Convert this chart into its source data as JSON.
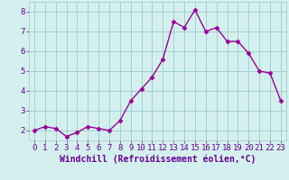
{
  "xlabel": "Windchill (Refroidissement éolien,°C)",
  "x": [
    0,
    1,
    2,
    3,
    4,
    5,
    6,
    7,
    8,
    9,
    10,
    11,
    12,
    13,
    14,
    15,
    16,
    17,
    18,
    19,
    20,
    21,
    22,
    23
  ],
  "y": [
    2.0,
    2.2,
    2.1,
    1.7,
    1.9,
    2.2,
    2.1,
    2.0,
    2.5,
    3.5,
    4.1,
    4.7,
    5.6,
    7.5,
    7.2,
    8.1,
    7.0,
    7.2,
    6.5,
    6.5,
    5.9,
    5.0,
    4.9,
    3.5
  ],
  "line_color": "#990099",
  "marker_color": "#990099",
  "bg_color": "#d4f0ee",
  "grid_color": "#99cccc",
  "axis_label_color": "#660099",
  "tick_color": "#660099",
  "ylim": [
    1.5,
    8.5
  ],
  "xlim": [
    -0.5,
    23.5
  ],
  "yticks": [
    2,
    3,
    4,
    5,
    6,
    7,
    8
  ],
  "xticks": [
    0,
    1,
    2,
    3,
    4,
    5,
    6,
    7,
    8,
    9,
    10,
    11,
    12,
    13,
    14,
    15,
    16,
    17,
    18,
    19,
    20,
    21,
    22,
    23
  ],
  "xlabel_fontsize": 7,
  "tick_fontsize": 6.5,
  "marker_size": 2.5,
  "line_width": 1.0
}
